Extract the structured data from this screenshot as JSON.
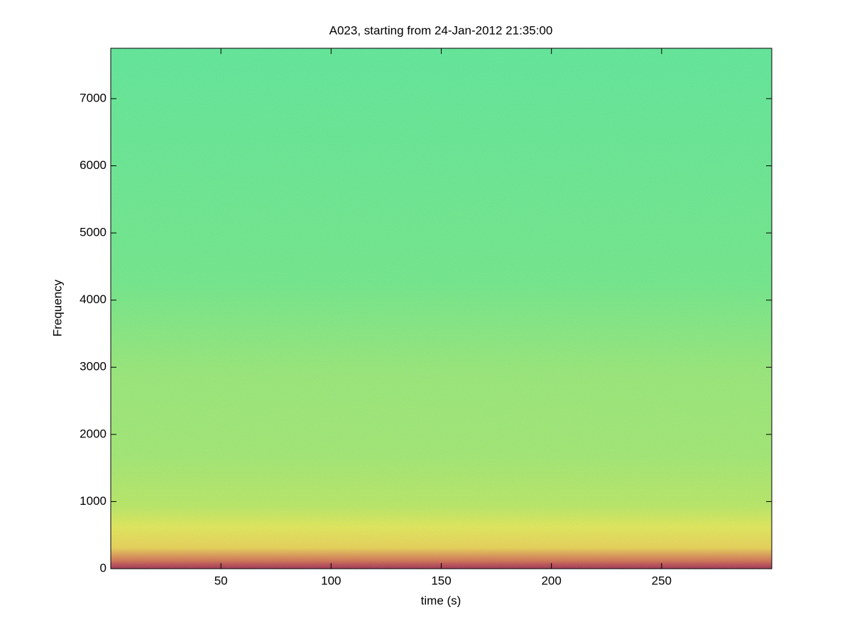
{
  "chart_data": {
    "type": "spectrogram",
    "title": "A023, starting from 24-Jan-2012 21:35:00",
    "x_label": "time (s)",
    "y_label": "Frequency",
    "xlim": [
      0,
      300
    ],
    "xticks": [
      50,
      100,
      150,
      200,
      250
    ],
    "ylim": [
      0,
      7750
    ],
    "yticks": [
      0,
      1000,
      2000,
      3000,
      4000,
      5000,
      6000,
      7000
    ]
  }
}
